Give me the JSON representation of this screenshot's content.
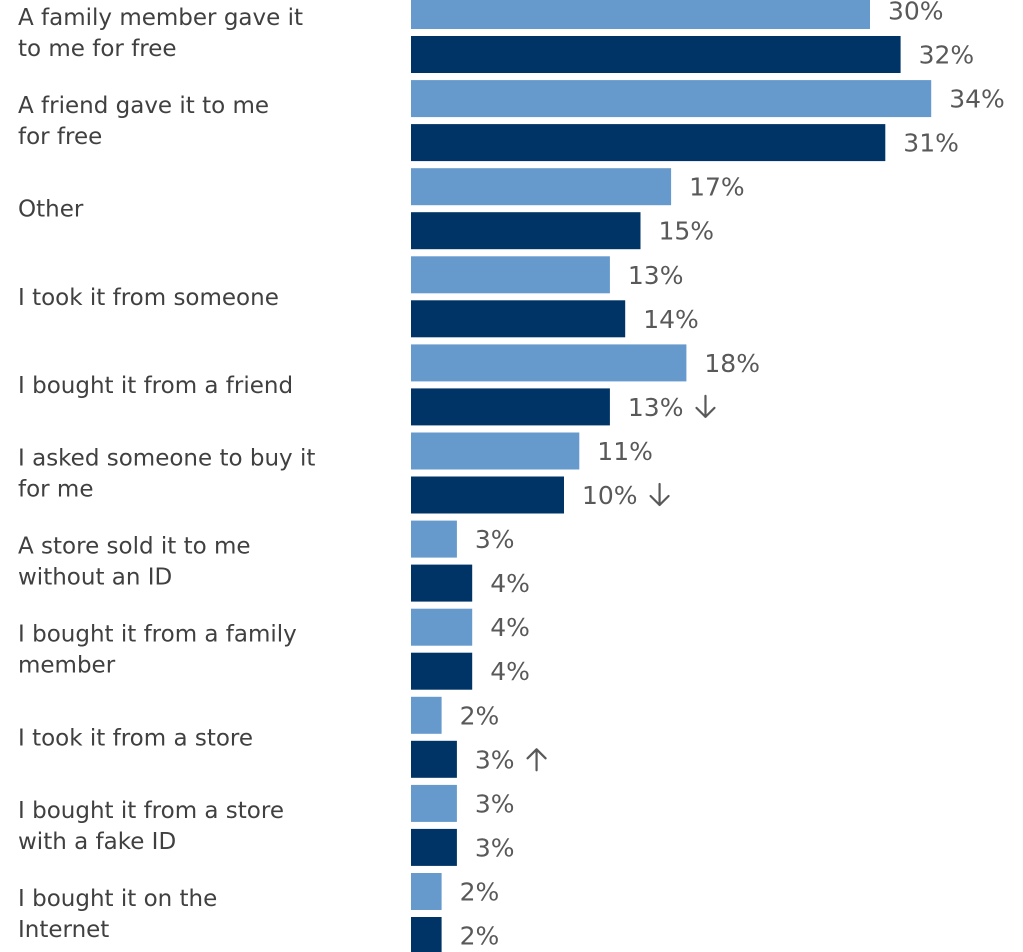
{
  "chart_data": {
    "type": "bar",
    "orientation": "horizontal",
    "xlim": [
      0,
      34
    ],
    "grid": false,
    "colors": [
      "#6699CC",
      "#003366"
    ],
    "categories": [
      [
        "A family member gave it",
        "to me for free"
      ],
      [
        "A friend gave it to me",
        "for free"
      ],
      [
        "Other"
      ],
      [
        "I took it from someone"
      ],
      [
        "I bought it from a friend"
      ],
      [
        "I asked someone to buy it",
        "for me"
      ],
      [
        "A store sold it to me",
        "without an ID"
      ],
      [
        "I bought it from a family",
        "member"
      ],
      [
        "I took it from a store"
      ],
      [
        "I bought it from a store",
        "with a fake ID"
      ],
      [
        "I bought it on the",
        "Internet"
      ]
    ],
    "series": [
      {
        "values": [
          30,
          34,
          17,
          13,
          18,
          11,
          3,
          4,
          2,
          3,
          2
        ],
        "labels": [
          "30%",
          "34%",
          "17%",
          "13%",
          "18%",
          "11%",
          "3%",
          "4%",
          "2%",
          "3%",
          "2%"
        ],
        "markers": [
          "",
          "",
          "",
          "",
          "",
          "",
          "",
          "",
          "",
          "",
          ""
        ]
      },
      {
        "values": [
          32,
          31,
          15,
          14,
          13,
          10,
          4,
          4,
          3,
          3,
          2
        ],
        "labels": [
          "32%",
          "31%",
          "15%",
          "14%",
          "13%",
          "10%",
          "4%",
          "4%",
          "3%",
          "3%",
          "2%"
        ],
        "markers": [
          "",
          "",
          "",
          "",
          "down",
          "down",
          "",
          "",
          "up",
          "",
          ""
        ]
      }
    ]
  }
}
